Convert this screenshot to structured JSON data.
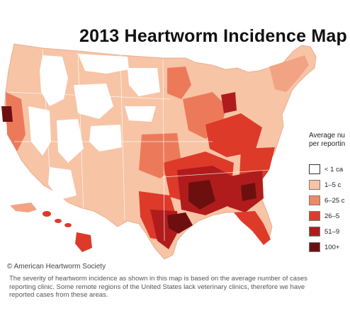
{
  "title": "2013 Heartworm Incidence Map",
  "legend": {
    "title_line1": "Average nu",
    "title_line2": "per reportin",
    "items": [
      {
        "label": "< 1 ca",
        "color": "#ffffff"
      },
      {
        "label": "1–5 c",
        "color": "#f7c4a6"
      },
      {
        "label": "6–25 c",
        "color": "#f08a64"
      },
      {
        "label": "26–5",
        "color": "#e23a2a"
      },
      {
        "label": "51–9",
        "color": "#b01c1c"
      },
      {
        "label": "100+",
        "color": "#6e0f0f"
      }
    ]
  },
  "copyright": "© American Heartworm Society",
  "footnote": {
    "line1": "The severity of heartworm incidence as shown in this map is based on the average number of cases",
    "line2": "reporting clinic. Some remote regions of the United States lack veterinary clinics, therefore we have",
    "line3": "reported cases from these areas."
  },
  "colors": {
    "none": "#ffffff",
    "low": "#f7c4a6",
    "light": "#f2a384",
    "mid": "#ec7a5a",
    "high": "#dd3a2a",
    "veryhigh": "#b01c1c",
    "extreme": "#6e0f0f",
    "border": "#ffffff"
  }
}
